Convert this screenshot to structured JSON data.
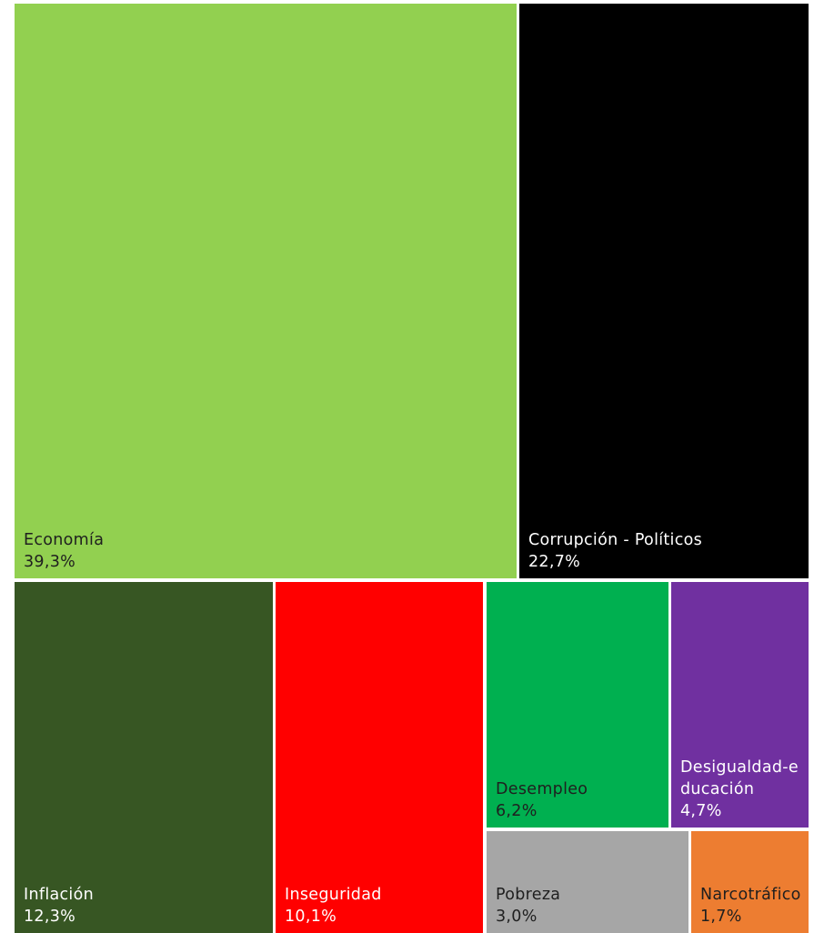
{
  "chart_data": {
    "type": "treemap",
    "unit": "%",
    "items": [
      {
        "label": "Economía",
        "value": 39.3,
        "value_text": "39,3%",
        "color": "#92d050",
        "text_color": "#1f1f1f"
      },
      {
        "label": "Corrupción - Políticos",
        "value": 22.7,
        "value_text": "22,7%",
        "color": "#000000",
        "text_color": "#ffffff"
      },
      {
        "label": "Inflación",
        "value": 12.3,
        "value_text": "12,3%",
        "color": "#375623",
        "text_color": "#ffffff"
      },
      {
        "label": "Inseguridad",
        "value": 10.1,
        "value_text": "10,1%",
        "color": "#ff0000",
        "text_color": "#ffffff"
      },
      {
        "label": "Desempleo",
        "value": 6.2,
        "value_text": "6,2%",
        "color": "#00b050",
        "text_color": "#1f1f1f"
      },
      {
        "label": "Desigualdad-educación",
        "value": 4.7,
        "value_text": "4,7%",
        "color": "#7030a0",
        "text_color": "#ffffff"
      },
      {
        "label": "Pobreza",
        "value": 3.0,
        "value_text": "3,0%",
        "color": "#a6a6a6",
        "text_color": "#1f1f1f"
      },
      {
        "label": "Narcotráfico",
        "value": 1.7,
        "value_text": "1,7%",
        "color": "#ed7d31",
        "text_color": "#1f1f1f"
      }
    ]
  }
}
